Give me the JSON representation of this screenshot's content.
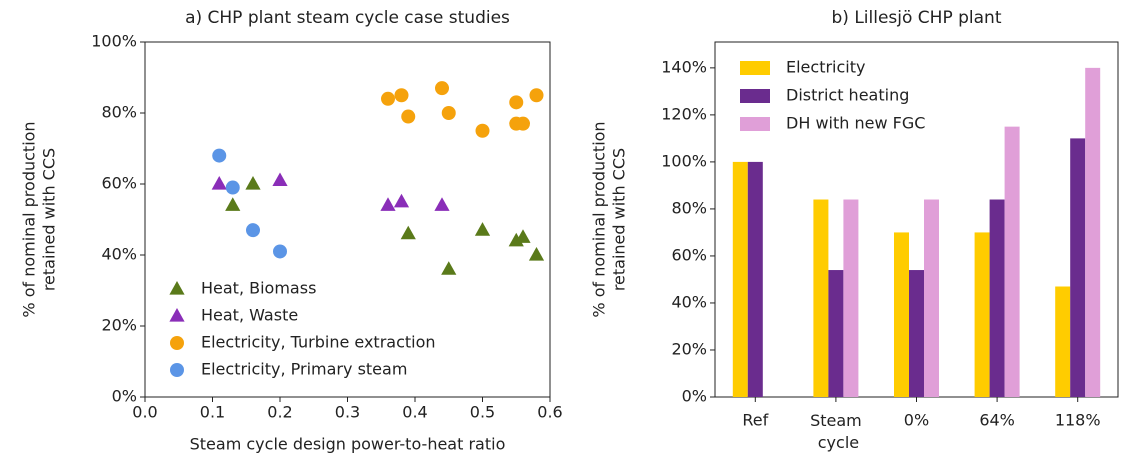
{
  "chart_data": [
    {
      "type": "scatter",
      "title": "a) CHP plant steam cycle case studies",
      "xlabel": "Steam cycle design power-to-heat ratio",
      "ylabel": [
        "% of nominal production",
        "retained with CCS"
      ],
      "xlim": [
        0,
        0.6
      ],
      "xticks": [
        {
          "value": 0,
          "label": "0.0"
        },
        0.1,
        0.2,
        0.3,
        0.4,
        0.5,
        0.6
      ],
      "ylim": [
        0,
        100
      ],
      "yticks": [
        {
          "value": 0,
          "label": "0%"
        },
        {
          "value": 20,
          "label": "20%"
        },
        {
          "value": 40,
          "label": "40%"
        },
        {
          "value": 60,
          "label": "60%"
        },
        {
          "value": 80,
          "label": "80%"
        },
        {
          "value": 100,
          "label": "100%"
        }
      ],
      "legend": "lower left",
      "series": [
        {
          "name": "Heat, Biomass",
          "color": "#5a7a1a",
          "marker": "triangle",
          "x": [
            0.16,
            0.13,
            0.39,
            0.45,
            0.5,
            0.55,
            0.56,
            0.58
          ],
          "values": [
            60,
            54,
            46,
            36,
            47,
            44,
            45,
            40
          ]
        },
        {
          "name": "Heat, Waste",
          "color": "#8a2eb8",
          "marker": "triangle",
          "x": [
            0.11,
            0.2,
            0.36,
            0.38,
            0.44
          ],
          "values": [
            60,
            61,
            54,
            55,
            54
          ]
        },
        {
          "name": "Electricity, Turbine extraction",
          "color": "#f5a20c",
          "marker": "circle",
          "x": [
            0.36,
            0.38,
            0.39,
            0.44,
            0.45,
            0.5,
            0.55,
            0.55,
            0.56,
            0.58
          ],
          "values": [
            84,
            85,
            79,
            87,
            80,
            75,
            83,
            77,
            77,
            85
          ]
        },
        {
          "name": "Electricity, Primary steam",
          "color": "#5b95e6",
          "marker": "circle",
          "x": [
            0.11,
            0.13,
            0.16,
            0.2
          ],
          "values": [
            68,
            59,
            47,
            41
          ]
        }
      ]
    },
    {
      "type": "bar",
      "title": "b) Lillesjö CHP plant",
      "ylabel": [
        "% of nominal production",
        "retained with CCS"
      ],
      "categories": [
        "Ref",
        "Steam cycle",
        "0%",
        "64%",
        "118%"
      ],
      "ylim": [
        0,
        151
      ],
      "yticks": [
        {
          "value": 0,
          "label": "0%"
        },
        {
          "value": 20,
          "label": "20%"
        },
        {
          "value": 40,
          "label": "40%"
        },
        {
          "value": 60,
          "label": "60%"
        },
        {
          "value": 80,
          "label": "80%"
        },
        {
          "value": 100,
          "label": "100%"
        },
        {
          "value": 120,
          "label": "120%"
        },
        {
          "value": 140,
          "label": "140%"
        }
      ],
      "legend": "upper left",
      "series": [
        {
          "name": "Electricity",
          "color": "#ffcc00",
          "values": [
            100,
            84,
            70,
            70,
            47
          ]
        },
        {
          "name": "District heating",
          "color": "#6a2c8e",
          "values": [
            100,
            54,
            54,
            84,
            110
          ]
        },
        {
          "name": "DH with new FGC",
          "color": "#e09fd8",
          "values": [
            null,
            84,
            84,
            115,
            140
          ]
        }
      ]
    }
  ]
}
